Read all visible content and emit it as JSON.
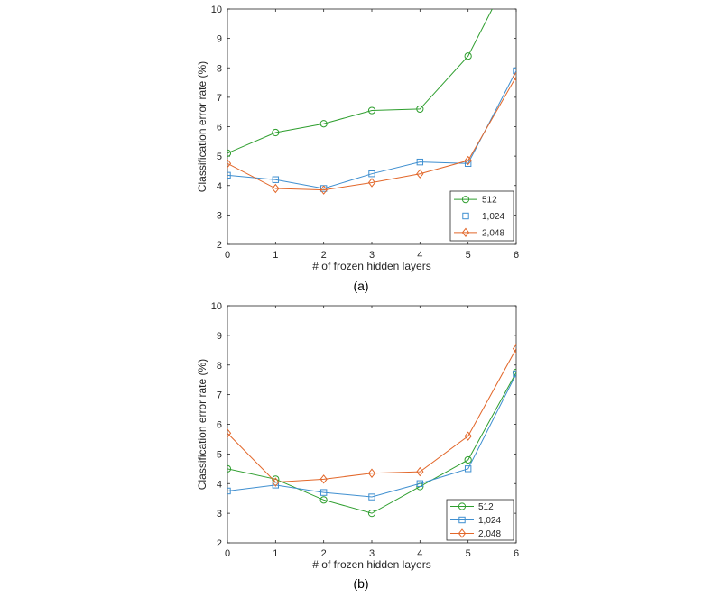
{
  "colors": {
    "512": "#2e9e2e",
    "1,024": "#3f8fd0",
    "2,048": "#e2672a"
  },
  "chart_data": [
    {
      "type": "line",
      "caption": "(a)",
      "xlabel": "# of frozen hidden layers",
      "ylabel": "Classification error rate (%)",
      "xlim": [
        0,
        6
      ],
      "ylim": [
        2,
        10
      ],
      "xticks": [
        0,
        1,
        2,
        3,
        4,
        5,
        6
      ],
      "yticks": [
        2,
        3,
        4,
        5,
        6,
        7,
        8,
        9,
        10
      ],
      "grid": false,
      "legend": "bottom-right",
      "series": [
        {
          "name": "512",
          "marker": "circle",
          "x": [
            0,
            1,
            2,
            3,
            4,
            5,
            5.5
          ],
          "y": [
            5.1,
            5.8,
            6.1,
            6.55,
            6.6,
            8.4,
            10
          ]
        },
        {
          "name": "1,024",
          "marker": "square",
          "x": [
            0,
            1,
            2,
            3,
            4,
            5,
            6
          ],
          "y": [
            4.35,
            4.2,
            3.9,
            4.4,
            4.8,
            4.75,
            7.9
          ]
        },
        {
          "name": "2,048",
          "marker": "diamond",
          "x": [
            0,
            1,
            2,
            3,
            4,
            5,
            6
          ],
          "y": [
            4.75,
            3.9,
            3.85,
            4.1,
            4.4,
            4.85,
            7.7
          ]
        }
      ]
    },
    {
      "type": "line",
      "caption": "(b)",
      "xlabel": "# of frozen hidden layers",
      "ylabel": "Classification error rate (%)",
      "xlim": [
        0,
        6
      ],
      "ylim": [
        2,
        10
      ],
      "xticks": [
        0,
        1,
        2,
        3,
        4,
        5,
        6
      ],
      "yticks": [
        2,
        3,
        4,
        5,
        6,
        7,
        8,
        9,
        10
      ],
      "grid": false,
      "legend": "bottom-right",
      "series": [
        {
          "name": "512",
          "marker": "circle",
          "x": [
            0,
            1,
            2,
            3,
            4,
            5,
            6
          ],
          "y": [
            4.5,
            4.15,
            3.45,
            3.0,
            3.9,
            4.8,
            7.75
          ]
        },
        {
          "name": "1,024",
          "marker": "square",
          "x": [
            0,
            1,
            2,
            3,
            4,
            5,
            6
          ],
          "y": [
            3.75,
            3.95,
            3.7,
            3.55,
            4.0,
            4.5,
            7.7
          ]
        },
        {
          "name": "2,048",
          "marker": "diamond",
          "x": [
            0,
            1,
            2,
            3,
            4,
            5,
            6
          ],
          "y": [
            5.7,
            4.05,
            4.15,
            4.35,
            4.4,
            5.6,
            8.55
          ]
        }
      ]
    }
  ]
}
